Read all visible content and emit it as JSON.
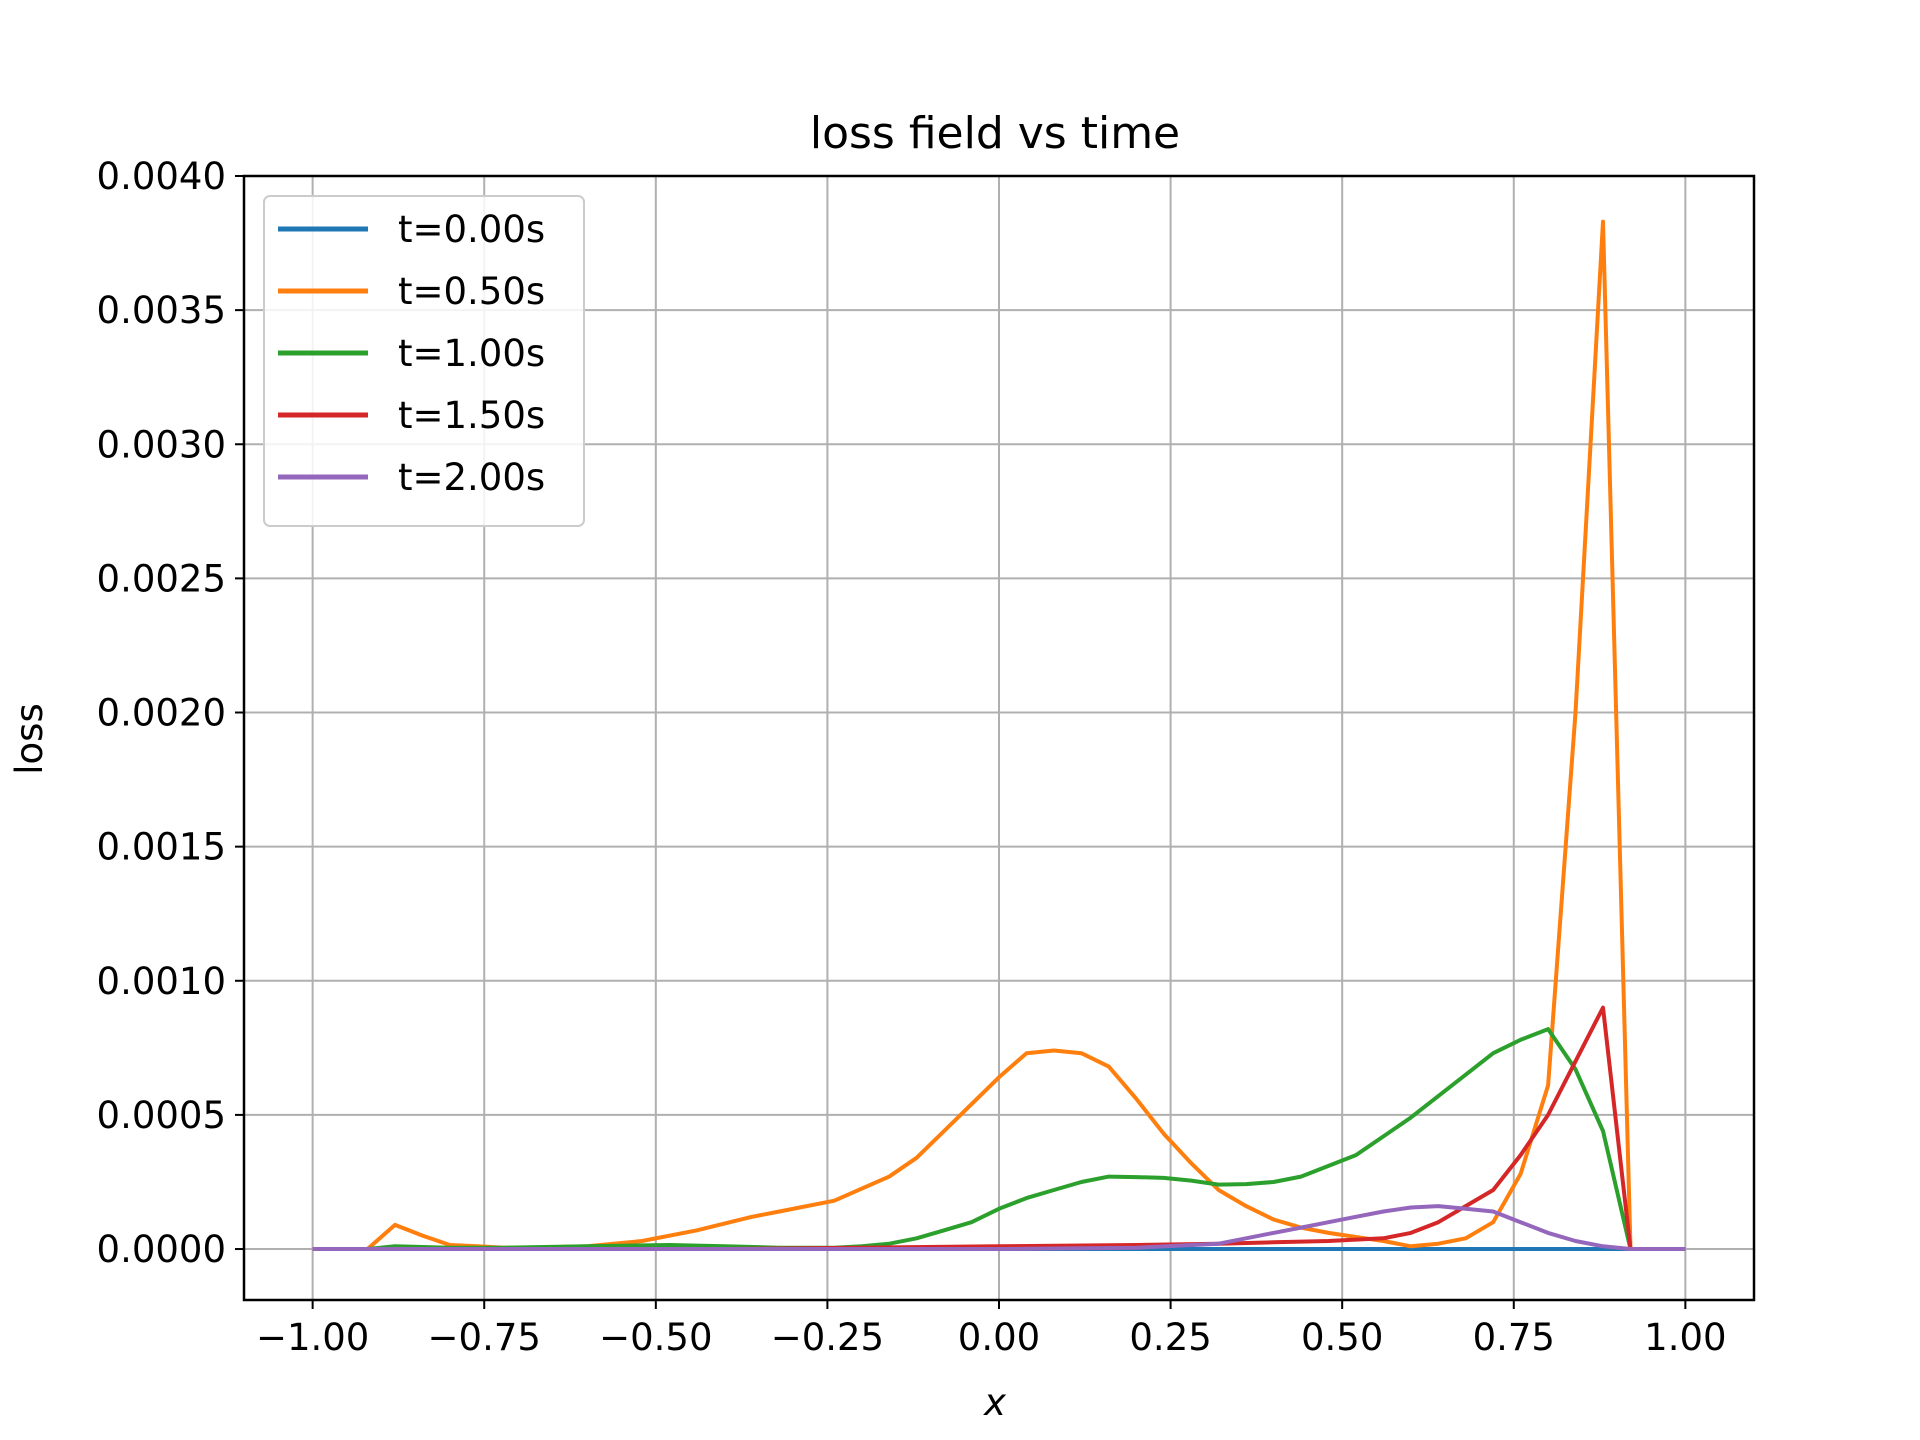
{
  "chart_data": {
    "type": "line",
    "title": "loss field vs time",
    "xlabel": "x",
    "ylabel": "loss",
    "xlim": [
      -1.1,
      1.1
    ],
    "ylim": [
      -0.00019,
      0.004
    ],
    "xticks": [
      -1.0,
      -0.75,
      -0.5,
      -0.25,
      0.0,
      0.25,
      0.5,
      0.75,
      1.0
    ],
    "xtick_labels": [
      "−1.00",
      "−0.75",
      "−0.50",
      "−0.25",
      "0.00",
      "0.25",
      "0.50",
      "0.75",
      "1.00"
    ],
    "yticks": [
      0.0,
      0.0005,
      0.001,
      0.0015,
      0.002,
      0.0025,
      0.003,
      0.0035,
      0.004
    ],
    "ytick_labels": [
      "0.0000",
      "0.0005",
      "0.0010",
      "0.0015",
      "0.0020",
      "0.0025",
      "0.0030",
      "0.0035",
      "0.0040"
    ],
    "grid": true,
    "legend_position": "top-left",
    "series": [
      {
        "name": "t=0.00s",
        "color": "#1f77b4",
        "x": [
          -1.0,
          -0.8,
          -0.6,
          -0.4,
          -0.2,
          0.0,
          0.2,
          0.4,
          0.6,
          0.8,
          0.92,
          1.0
        ],
        "y": [
          0,
          0,
          0,
          0,
          0,
          0,
          0,
          0,
          0,
          0,
          0,
          0
        ]
      },
      {
        "name": "t=0.50s",
        "color": "#ff7f0e",
        "x": [
          -1.0,
          -0.92,
          -0.88,
          -0.84,
          -0.8,
          -0.76,
          -0.72,
          -0.68,
          -0.6,
          -0.52,
          -0.44,
          -0.36,
          -0.32,
          -0.24,
          -0.16,
          -0.12,
          -0.08,
          -0.04,
          0.0,
          0.04,
          0.08,
          0.12,
          0.16,
          0.2,
          0.24,
          0.28,
          0.32,
          0.36,
          0.4,
          0.44,
          0.48,
          0.52,
          0.56,
          0.6,
          0.64,
          0.68,
          0.72,
          0.76,
          0.8,
          0.84,
          0.88,
          0.92,
          0.96,
          1.0
        ],
        "y": [
          0,
          0,
          9e-05,
          5e-05,
          1.5e-05,
          1e-05,
          5e-06,
          5e-06,
          1e-05,
          3e-05,
          7e-05,
          0.00012,
          0.00014,
          0.00018,
          0.00027,
          0.00034,
          0.00044,
          0.00054,
          0.00064,
          0.00073,
          0.00074,
          0.00073,
          0.00068,
          0.00056,
          0.00043,
          0.00032,
          0.00022,
          0.00016,
          0.00011,
          8e-05,
          6e-05,
          4.5e-05,
          3e-05,
          1e-05,
          2e-05,
          4e-05,
          0.0001,
          0.00028,
          0.00061,
          0.002,
          0.00383,
          0,
          0,
          0
        ]
      },
      {
        "name": "t=1.00s",
        "color": "#2ca02c",
        "x": [
          -1.0,
          -0.92,
          -0.88,
          -0.8,
          -0.72,
          -0.6,
          -0.48,
          -0.4,
          -0.32,
          -0.24,
          -0.2,
          -0.16,
          -0.12,
          -0.08,
          -0.04,
          0.0,
          0.04,
          0.08,
          0.12,
          0.16,
          0.2,
          0.24,
          0.28,
          0.32,
          0.36,
          0.4,
          0.44,
          0.48,
          0.52,
          0.56,
          0.6,
          0.64,
          0.68,
          0.72,
          0.76,
          0.8,
          0.84,
          0.88,
          0.92,
          0.96,
          1.0
        ],
        "y": [
          0,
          0,
          1e-05,
          5e-06,
          5e-06,
          1e-05,
          1.5e-05,
          1e-05,
          5e-06,
          5e-06,
          1e-05,
          2e-05,
          4e-05,
          7e-05,
          0.0001,
          0.00015,
          0.00019,
          0.00022,
          0.00025,
          0.00027,
          0.000268,
          0.000265,
          0.000255,
          0.00024,
          0.000242,
          0.00025,
          0.00027,
          0.00031,
          0.00035,
          0.00042,
          0.00049,
          0.00057,
          0.00065,
          0.00073,
          0.00078,
          0.00082,
          0.00067,
          0.00044,
          0,
          0,
          0
        ]
      },
      {
        "name": "t=1.50s",
        "color": "#d62728",
        "x": [
          -1.0,
          -0.8,
          -0.6,
          -0.4,
          -0.2,
          0.0,
          0.2,
          0.32,
          0.4,
          0.48,
          0.56,
          0.6,
          0.64,
          0.68,
          0.72,
          0.76,
          0.8,
          0.84,
          0.88,
          0.92,
          0.96,
          1.0
        ],
        "y": [
          0,
          0,
          0,
          0,
          5e-06,
          1e-05,
          1.5e-05,
          2e-05,
          2.5e-05,
          3e-05,
          4e-05,
          6e-05,
          0.0001,
          0.00016,
          0.00022,
          0.00035,
          0.0005,
          0.0007,
          0.0009,
          0,
          0,
          0
        ]
      },
      {
        "name": "t=2.00s",
        "color": "#9467bd",
        "x": [
          -1.0,
          -0.8,
          -0.6,
          -0.4,
          -0.2,
          0.0,
          0.2,
          0.32,
          0.36,
          0.4,
          0.44,
          0.48,
          0.52,
          0.56,
          0.6,
          0.64,
          0.68,
          0.72,
          0.76,
          0.8,
          0.84,
          0.88,
          0.92,
          0.96,
          1.0
        ],
        "y": [
          0,
          0,
          0,
          0,
          0,
          0,
          5e-06,
          2e-05,
          4e-05,
          6e-05,
          8e-05,
          0.0001,
          0.00012,
          0.00014,
          0.000155,
          0.00016,
          0.00015,
          0.00014,
          0.0001,
          6e-05,
          3e-05,
          1e-05,
          0,
          0,
          0
        ]
      }
    ]
  }
}
